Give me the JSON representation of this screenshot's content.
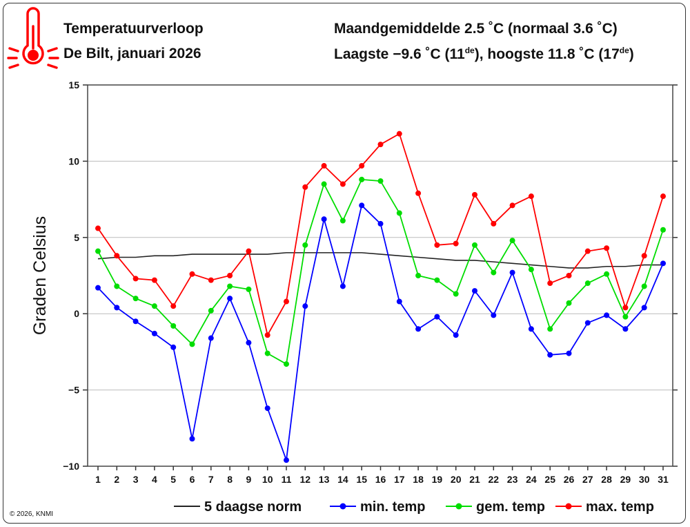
{
  "header": {
    "title": "Temperatuurverloop",
    "subtitle": "De Bilt, januari 2026",
    "summary_line1": "Maandgemiddelde 2.5 ˚C (normaal 3.6 ˚C)",
    "summary_line2_pre": "Laagste −9.6 ˚C (11",
    "summary_line2_sup1": "de",
    "summary_line2_mid": "), hoogste 11.8 ˚C (17",
    "summary_line2_sup2": "de",
    "summary_line2_post": ")",
    "icon": "thermometer-icon"
  },
  "copyright": "© 2026, KNMI",
  "chart_data": {
    "type": "line",
    "ylabel": "Graden Celsius",
    "xlabel": "",
    "ylim": [
      -10,
      15
    ],
    "yticks": [
      15,
      10,
      5,
      0,
      -5,
      -10
    ],
    "ytick_labels": [
      "15",
      "10",
      "5",
      "0",
      "−5",
      "−10"
    ],
    "grid": true,
    "legend_position": "bottom",
    "x": [
      1,
      2,
      3,
      4,
      5,
      6,
      7,
      8,
      9,
      10,
      11,
      12,
      13,
      14,
      15,
      16,
      17,
      18,
      19,
      20,
      21,
      22,
      23,
      24,
      25,
      26,
      27,
      28,
      29,
      30,
      31
    ],
    "series": [
      {
        "name": "5 daagse norm",
        "color": "#222222",
        "markers": false,
        "values": [
          3.6,
          3.7,
          3.7,
          3.8,
          3.8,
          3.9,
          3.9,
          3.9,
          3.9,
          3.9,
          4.0,
          4.0,
          4.0,
          4.0,
          4.0,
          3.9,
          3.8,
          3.7,
          3.6,
          3.5,
          3.5,
          3.4,
          3.3,
          3.2,
          3.1,
          3.0,
          3.0,
          3.1,
          3.1,
          3.2,
          3.2
        ]
      },
      {
        "name": "min. temp",
        "color": "#0000ff",
        "markers": true,
        "values": [
          1.7,
          0.4,
          -0.5,
          -1.3,
          -2.2,
          -8.2,
          -1.6,
          1.0,
          -1.9,
          -6.2,
          -9.6,
          0.5,
          6.2,
          1.8,
          7.1,
          5.9,
          0.8,
          -1.0,
          -0.2,
          -1.4,
          1.5,
          -0.1,
          2.7,
          -1.0,
          -2.7,
          -2.6,
          -0.6,
          -0.1,
          -1.0,
          0.4,
          3.3
        ]
      },
      {
        "name": "gem. temp",
        "color": "#00dd00",
        "markers": true,
        "values": [
          4.1,
          1.8,
          1.0,
          0.5,
          -0.8,
          -2.0,
          0.2,
          1.8,
          1.6,
          -2.6,
          -3.3,
          4.5,
          8.5,
          6.1,
          8.8,
          8.7,
          6.6,
          2.5,
          2.2,
          1.3,
          4.5,
          2.7,
          4.8,
          2.9,
          -1.0,
          0.7,
          2.0,
          2.6,
          -0.2,
          1.8,
          5.5
        ]
      },
      {
        "name": "max. temp",
        "color": "#ff0000",
        "markers": true,
        "values": [
          5.6,
          3.8,
          2.3,
          2.2,
          0.5,
          2.6,
          2.2,
          2.5,
          4.1,
          -1.4,
          0.8,
          8.3,
          9.7,
          8.5,
          9.7,
          11.1,
          11.8,
          7.9,
          4.5,
          4.6,
          7.8,
          5.9,
          7.1,
          7.7,
          2.0,
          2.5,
          4.1,
          4.3,
          0.4,
          3.8,
          7.7
        ]
      }
    ]
  }
}
